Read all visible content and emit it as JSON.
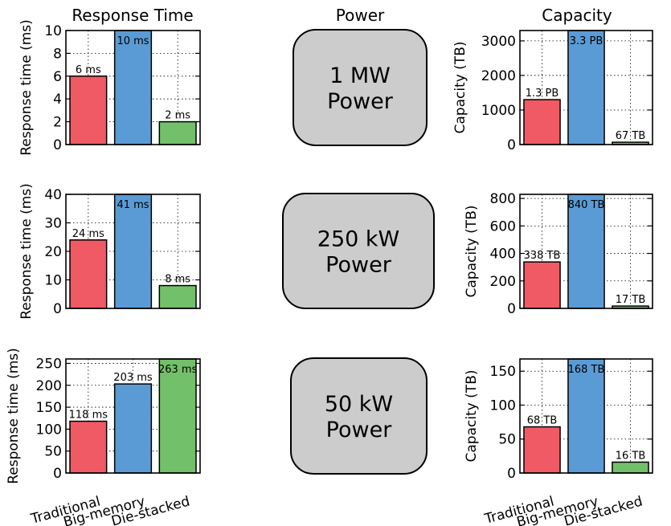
{
  "column_titles": {
    "response": "Response Time",
    "power": "Power",
    "capacity": "Capacity"
  },
  "categories": [
    "Traditional",
    "Big-memory",
    "Die-stacked"
  ],
  "colors": {
    "traditional": "#f05a64",
    "big_memory": "#5b9bd5",
    "die_stacked": "#73c06b",
    "box_fill": "#cccccc"
  },
  "power_boxes": [
    {
      "line1": "1 MW",
      "line2": "Power"
    },
    {
      "line1": "250 kW",
      "line2": "Power"
    },
    {
      "line1": "50 kW",
      "line2": "Power"
    }
  ],
  "chart_data": [
    {
      "type": "bar",
      "title": "Response Time",
      "ylabel": "Response time (ms)",
      "categories": [
        "Traditional",
        "Big-memory",
        "Die-stacked"
      ],
      "values": [
        6,
        10,
        2
      ],
      "labels": [
        "6 ms",
        "10 ms",
        "2 ms"
      ],
      "ylim": [
        0,
        10
      ],
      "yticks": [
        0,
        2,
        4,
        6,
        8,
        10
      ],
      "grid": true
    },
    {
      "type": "bar",
      "ylabel": "Response time (ms)",
      "categories": [
        "Traditional",
        "Big-memory",
        "Die-stacked"
      ],
      "values": [
        24,
        41,
        8
      ],
      "labels": [
        "24 ms",
        "41 ms",
        "8 ms"
      ],
      "ylim": [
        0,
        40
      ],
      "yticks": [
        0,
        10,
        20,
        30,
        40
      ],
      "grid": true
    },
    {
      "type": "bar",
      "ylabel": "Response time (ms)",
      "categories": [
        "Traditional",
        "Big-memory",
        "Die-stacked"
      ],
      "values": [
        118,
        203,
        263
      ],
      "labels": [
        "118 ms",
        "203 ms",
        "263 ms"
      ],
      "ylim": [
        0,
        260
      ],
      "yticks": [
        0,
        50,
        100,
        150,
        200,
        250
      ],
      "grid": true
    },
    {
      "type": "bar",
      "title": "Capacity",
      "ylabel": "Capacity (TB)",
      "categories": [
        "Traditional",
        "Big-memory",
        "Die-stacked"
      ],
      "values": [
        1300,
        3300,
        67
      ],
      "labels": [
        "1.3 PB",
        "3.3 PB",
        "67 TB"
      ],
      "ylim": [
        0,
        3300
      ],
      "yticks": [
        0,
        1000,
        2000,
        3000
      ],
      "grid": true
    },
    {
      "type": "bar",
      "ylabel": "Capacity (TB)",
      "categories": [
        "Traditional",
        "Big-memory",
        "Die-stacked"
      ],
      "values": [
        338,
        840,
        17
      ],
      "labels": [
        "338 TB",
        "840 TB",
        "17 TB"
      ],
      "ylim": [
        0,
        830
      ],
      "yticks": [
        0,
        200,
        400,
        600,
        800
      ],
      "grid": true
    },
    {
      "type": "bar",
      "ylabel": "Capacity (TB)",
      "categories": [
        "Traditional",
        "Big-memory",
        "Die-stacked"
      ],
      "values": [
        68,
        168,
        16
      ],
      "labels": [
        "68 TB",
        "168 TB",
        "16 TB"
      ],
      "ylim": [
        0,
        168
      ],
      "yticks": [
        0,
        50,
        100,
        150
      ],
      "grid": true
    }
  ]
}
